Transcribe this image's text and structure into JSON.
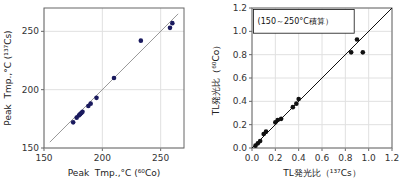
{
  "chart_data": [
    {
      "type": "scatter",
      "xlabel": "Peak  Tmp.,°C (⁶⁰Co)",
      "ylabel": "Peak  Tmp.,°C (¹³⁷Cs)",
      "xlim": [
        150,
        270
      ],
      "ylim": [
        150,
        270
      ],
      "xticks": [
        150,
        200,
        250
      ],
      "yticks": [
        150,
        200,
        250
      ],
      "grid": true,
      "series": [
        {
          "type": "line",
          "color": "#999999",
          "x": [
            155,
            265
          ],
          "values": [
            155,
            265
          ]
        },
        {
          "type": "scatter",
          "color": "#1a1a5e",
          "x": [
            175,
            178,
            180,
            181,
            182,
            183,
            188,
            190,
            195,
            210,
            233,
            258,
            260
          ],
          "values": [
            172,
            176,
            178,
            179,
            180,
            181,
            186,
            188,
            193,
            210,
            242,
            253,
            257
          ]
        }
      ]
    },
    {
      "type": "scatter",
      "xlabel": "TL発光比（¹³⁷Cs）",
      "ylabel": "TL発光比（⁶⁰Co）",
      "annotation": "(150～250°C積算）",
      "xlim": [
        0,
        1.2
      ],
      "ylim": [
        0,
        1.2
      ],
      "xticks": [
        {
          "value": 0,
          "label": "0.0"
        },
        0.2,
        0.4,
        0.6,
        0.8,
        {
          "value": 1.0,
          "label": "1.0"
        },
        1.2
      ],
      "yticks": [
        {
          "value": 0,
          "label": "0.0"
        },
        0.2,
        0.4,
        0.6,
        0.8,
        {
          "value": 1.0,
          "label": "1.0"
        },
        1.2
      ],
      "grid": true,
      "series": [
        {
          "type": "line",
          "color": "#111111",
          "x": [
            0,
            1.2
          ],
          "values": [
            0,
            1.2
          ]
        },
        {
          "type": "scatter",
          "color": "#111111",
          "x": [
            0.03,
            0.05,
            0.07,
            0.1,
            0.12,
            0.2,
            0.22,
            0.25,
            0.35,
            0.38,
            0.4,
            0.85,
            0.9,
            0.95
          ],
          "values": [
            0.02,
            0.04,
            0.06,
            0.12,
            0.14,
            0.22,
            0.24,
            0.25,
            0.35,
            0.38,
            0.42,
            0.82,
            0.93,
            0.82
          ]
        }
      ]
    }
  ]
}
